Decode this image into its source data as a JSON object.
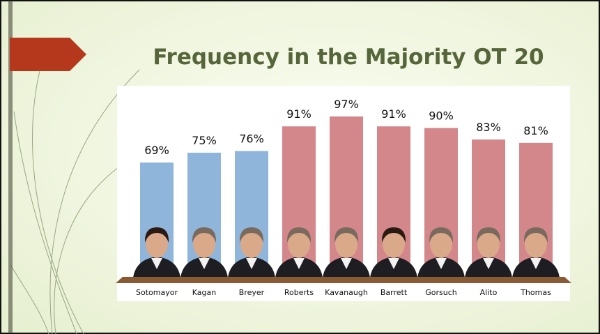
{
  "chart_data": {
    "type": "bar",
    "title": "Frequency in the Majority OT 20",
    "categories": [
      "Sotomayor",
      "Kagan",
      "Breyer",
      "Roberts",
      "Kavanaugh",
      "Barrett",
      "Gorsuch",
      "Alito",
      "Thomas"
    ],
    "values": [
      69,
      75,
      76,
      91,
      97,
      91,
      90,
      83,
      81
    ],
    "value_labels": [
      "69%",
      "75%",
      "76%",
      "91%",
      "97%",
      "91%",
      "90%",
      "83%",
      "81%"
    ],
    "colors": [
      "#8fb5da",
      "#8fb5da",
      "#8fb5da",
      "#d4878b",
      "#d4878b",
      "#d4878b",
      "#d4878b",
      "#d4878b",
      "#d4878b"
    ],
    "ylim": [
      0,
      100
    ]
  }
}
